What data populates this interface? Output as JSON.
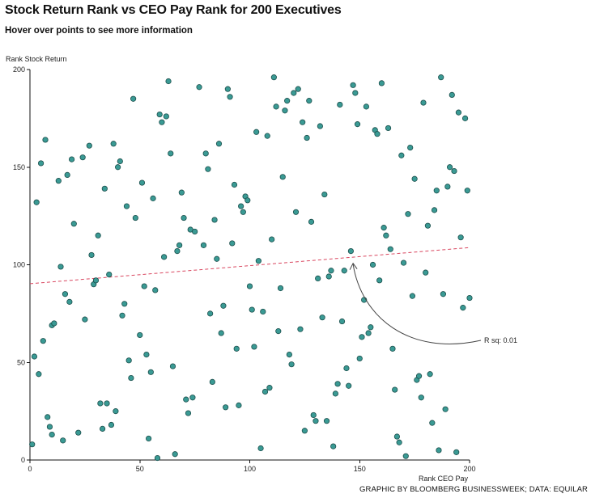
{
  "header": {
    "title": "Stock Return Rank vs CEO Pay Rank for 200 Executives",
    "subtitle": "Hover over points to see more information"
  },
  "credit": "GRAPHIC BY BLOOMBERG BUSINESSWEEK; DATA: EQUILAR",
  "colors": {
    "point_fill": "#3a9a94",
    "point_stroke": "#1c4f4c",
    "trend_line": "#d9465f",
    "annotation": "#444444",
    "axis": "#111111"
  },
  "chart_data": {
    "type": "scatter",
    "title": "Stock Return Rank vs CEO Pay Rank for 200 Executives",
    "subtitle": "Hover over points to see more information",
    "xlabel": "Rank CEO Pay",
    "ylabel": "Rank Stock Return",
    "xlim": [
      0,
      200
    ],
    "ylim": [
      0,
      200
    ],
    "x_ticks": [
      0,
      50,
      100,
      150,
      200
    ],
    "y_ticks": [
      0,
      50,
      100,
      150,
      200
    ],
    "grid": false,
    "trendline": {
      "x": [
        0,
        200
      ],
      "y": [
        90.3,
        108.8
      ],
      "style": "dashed"
    },
    "annotation": {
      "text": "R sq: 0.01",
      "points_to": {
        "x": 147,
        "y": 102
      }
    },
    "points": [
      {
        "x": 1,
        "y": 8
      },
      {
        "x": 2,
        "y": 53
      },
      {
        "x": 3,
        "y": 132
      },
      {
        "x": 4,
        "y": 44
      },
      {
        "x": 5,
        "y": 152
      },
      {
        "x": 6,
        "y": 61
      },
      {
        "x": 7,
        "y": 164
      },
      {
        "x": 8,
        "y": 22
      },
      {
        "x": 9,
        "y": 17
      },
      {
        "x": 10,
        "y": 13
      },
      {
        "x": 10,
        "y": 69
      },
      {
        "x": 11,
        "y": 70
      },
      {
        "x": 13,
        "y": 143
      },
      {
        "x": 14,
        "y": 99
      },
      {
        "x": 15,
        "y": 10
      },
      {
        "x": 16,
        "y": 85
      },
      {
        "x": 17,
        "y": 146
      },
      {
        "x": 18,
        "y": 81
      },
      {
        "x": 19,
        "y": 154
      },
      {
        "x": 20,
        "y": 121
      },
      {
        "x": 22,
        "y": 14
      },
      {
        "x": 24,
        "y": 155
      },
      {
        "x": 25,
        "y": 72
      },
      {
        "x": 27,
        "y": 161
      },
      {
        "x": 28,
        "y": 105
      },
      {
        "x": 29,
        "y": 90
      },
      {
        "x": 30,
        "y": 92
      },
      {
        "x": 31,
        "y": 115
      },
      {
        "x": 32,
        "y": 29
      },
      {
        "x": 33,
        "y": 16
      },
      {
        "x": 34,
        "y": 139
      },
      {
        "x": 35,
        "y": 29
      },
      {
        "x": 36,
        "y": 95
      },
      {
        "x": 37,
        "y": 18
      },
      {
        "x": 38,
        "y": 162
      },
      {
        "x": 39,
        "y": 25
      },
      {
        "x": 40,
        "y": 150
      },
      {
        "x": 41,
        "y": 153
      },
      {
        "x": 42,
        "y": 74
      },
      {
        "x": 43,
        "y": 80
      },
      {
        "x": 44,
        "y": 130
      },
      {
        "x": 45,
        "y": 51
      },
      {
        "x": 46,
        "y": 42
      },
      {
        "x": 47,
        "y": 185
      },
      {
        "x": 48,
        "y": 124
      },
      {
        "x": 50,
        "y": 64
      },
      {
        "x": 51,
        "y": 142
      },
      {
        "x": 52,
        "y": 89
      },
      {
        "x": 53,
        "y": 54
      },
      {
        "x": 54,
        "y": 11
      },
      {
        "x": 55,
        "y": 45
      },
      {
        "x": 56,
        "y": 134
      },
      {
        "x": 57,
        "y": 87
      },
      {
        "x": 58,
        "y": 1
      },
      {
        "x": 59,
        "y": 177
      },
      {
        "x": 60,
        "y": 173
      },
      {
        "x": 61,
        "y": 104
      },
      {
        "x": 62,
        "y": 176
      },
      {
        "x": 63,
        "y": 194
      },
      {
        "x": 64,
        "y": 157
      },
      {
        "x": 65,
        "y": 48
      },
      {
        "x": 66,
        "y": 3
      },
      {
        "x": 67,
        "y": 107
      },
      {
        "x": 68,
        "y": 110
      },
      {
        "x": 69,
        "y": 137
      },
      {
        "x": 70,
        "y": 124
      },
      {
        "x": 71,
        "y": 31
      },
      {
        "x": 72,
        "y": 24
      },
      {
        "x": 73,
        "y": 118
      },
      {
        "x": 74,
        "y": 32
      },
      {
        "x": 75,
        "y": 117
      },
      {
        "x": 77,
        "y": 191
      },
      {
        "x": 79,
        "y": 110
      },
      {
        "x": 80,
        "y": 157
      },
      {
        "x": 81,
        "y": 149
      },
      {
        "x": 82,
        "y": 75
      },
      {
        "x": 83,
        "y": 40
      },
      {
        "x": 84,
        "y": 123
      },
      {
        "x": 85,
        "y": 103
      },
      {
        "x": 86,
        "y": 162
      },
      {
        "x": 87,
        "y": 65
      },
      {
        "x": 88,
        "y": 79
      },
      {
        "x": 89,
        "y": 27
      },
      {
        "x": 90,
        "y": 190
      },
      {
        "x": 91,
        "y": 186
      },
      {
        "x": 92,
        "y": 111
      },
      {
        "x": 93,
        "y": 141
      },
      {
        "x": 94,
        "y": 57
      },
      {
        "x": 95,
        "y": 28
      },
      {
        "x": 96,
        "y": 130
      },
      {
        "x": 97,
        "y": 127
      },
      {
        "x": 98,
        "y": 135
      },
      {
        "x": 99,
        "y": 133
      },
      {
        "x": 100,
        "y": 89
      },
      {
        "x": 101,
        "y": 77
      },
      {
        "x": 102,
        "y": 58
      },
      {
        "x": 103,
        "y": 168
      },
      {
        "x": 104,
        "y": 102
      },
      {
        "x": 105,
        "y": 6
      },
      {
        "x": 106,
        "y": 76
      },
      {
        "x": 107,
        "y": 35
      },
      {
        "x": 108,
        "y": 166
      },
      {
        "x": 109,
        "y": 37
      },
      {
        "x": 110,
        "y": 113
      },
      {
        "x": 111,
        "y": 196
      },
      {
        "x": 112,
        "y": 181
      },
      {
        "x": 113,
        "y": 66
      },
      {
        "x": 114,
        "y": 88
      },
      {
        "x": 115,
        "y": 145
      },
      {
        "x": 116,
        "y": 179
      },
      {
        "x": 117,
        "y": 184
      },
      {
        "x": 118,
        "y": 54
      },
      {
        "x": 119,
        "y": 49
      },
      {
        "x": 120,
        "y": 188
      },
      {
        "x": 121,
        "y": 127
      },
      {
        "x": 122,
        "y": 190
      },
      {
        "x": 123,
        "y": 67
      },
      {
        "x": 124,
        "y": 173
      },
      {
        "x": 125,
        "y": 15
      },
      {
        "x": 126,
        "y": 165
      },
      {
        "x": 127,
        "y": 184
      },
      {
        "x": 128,
        "y": 122
      },
      {
        "x": 129,
        "y": 23
      },
      {
        "x": 130,
        "y": 20
      },
      {
        "x": 131,
        "y": 93
      },
      {
        "x": 132,
        "y": 171
      },
      {
        "x": 133,
        "y": 73
      },
      {
        "x": 134,
        "y": 136
      },
      {
        "x": 135,
        "y": 20
      },
      {
        "x": 136,
        "y": 94
      },
      {
        "x": 137,
        "y": 97
      },
      {
        "x": 138,
        "y": 7
      },
      {
        "x": 139,
        "y": 34
      },
      {
        "x": 140,
        "y": 39
      },
      {
        "x": 141,
        "y": 182
      },
      {
        "x": 142,
        "y": 71
      },
      {
        "x": 143,
        "y": 97
      },
      {
        "x": 144,
        "y": 47
      },
      {
        "x": 145,
        "y": 38
      },
      {
        "x": 146,
        "y": 107
      },
      {
        "x": 147,
        "y": 192
      },
      {
        "x": 148,
        "y": 188
      },
      {
        "x": 149,
        "y": 172
      },
      {
        "x": 150,
        "y": 52
      },
      {
        "x": 151,
        "y": 63
      },
      {
        "x": 152,
        "y": 82
      },
      {
        "x": 153,
        "y": 181
      },
      {
        "x": 154,
        "y": 65
      },
      {
        "x": 155,
        "y": 68
      },
      {
        "x": 156,
        "y": 100
      },
      {
        "x": 157,
        "y": 169
      },
      {
        "x": 158,
        "y": 167
      },
      {
        "x": 159,
        "y": 92
      },
      {
        "x": 160,
        "y": 193
      },
      {
        "x": 161,
        "y": 119
      },
      {
        "x": 162,
        "y": 115
      },
      {
        "x": 163,
        "y": 170
      },
      {
        "x": 164,
        "y": 108
      },
      {
        "x": 165,
        "y": 57
      },
      {
        "x": 166,
        "y": 36
      },
      {
        "x": 167,
        "y": 12
      },
      {
        "x": 168,
        "y": 9
      },
      {
        "x": 169,
        "y": 156
      },
      {
        "x": 170,
        "y": 101
      },
      {
        "x": 171,
        "y": 2
      },
      {
        "x": 172,
        "y": 126
      },
      {
        "x": 173,
        "y": 160
      },
      {
        "x": 174,
        "y": 84
      },
      {
        "x": 175,
        "y": 144
      },
      {
        "x": 176,
        "y": 41
      },
      {
        "x": 177,
        "y": 43
      },
      {
        "x": 178,
        "y": 32
      },
      {
        "x": 179,
        "y": 183
      },
      {
        "x": 180,
        "y": 96
      },
      {
        "x": 181,
        "y": 120
      },
      {
        "x": 182,
        "y": 44
      },
      {
        "x": 183,
        "y": 19
      },
      {
        "x": 184,
        "y": 128
      },
      {
        "x": 185,
        "y": 138
      },
      {
        "x": 186,
        "y": 5
      },
      {
        "x": 187,
        "y": 196
      },
      {
        "x": 188,
        "y": 85
      },
      {
        "x": 189,
        "y": 26
      },
      {
        "x": 190,
        "y": 140
      },
      {
        "x": 191,
        "y": 150
      },
      {
        "x": 192,
        "y": 187
      },
      {
        "x": 193,
        "y": 148
      },
      {
        "x": 194,
        "y": 4
      },
      {
        "x": 195,
        "y": 178
      },
      {
        "x": 196,
        "y": 114
      },
      {
        "x": 197,
        "y": 78
      },
      {
        "x": 198,
        "y": 175
      },
      {
        "x": 199,
        "y": 138
      },
      {
        "x": 200,
        "y": 83
      }
    ]
  }
}
